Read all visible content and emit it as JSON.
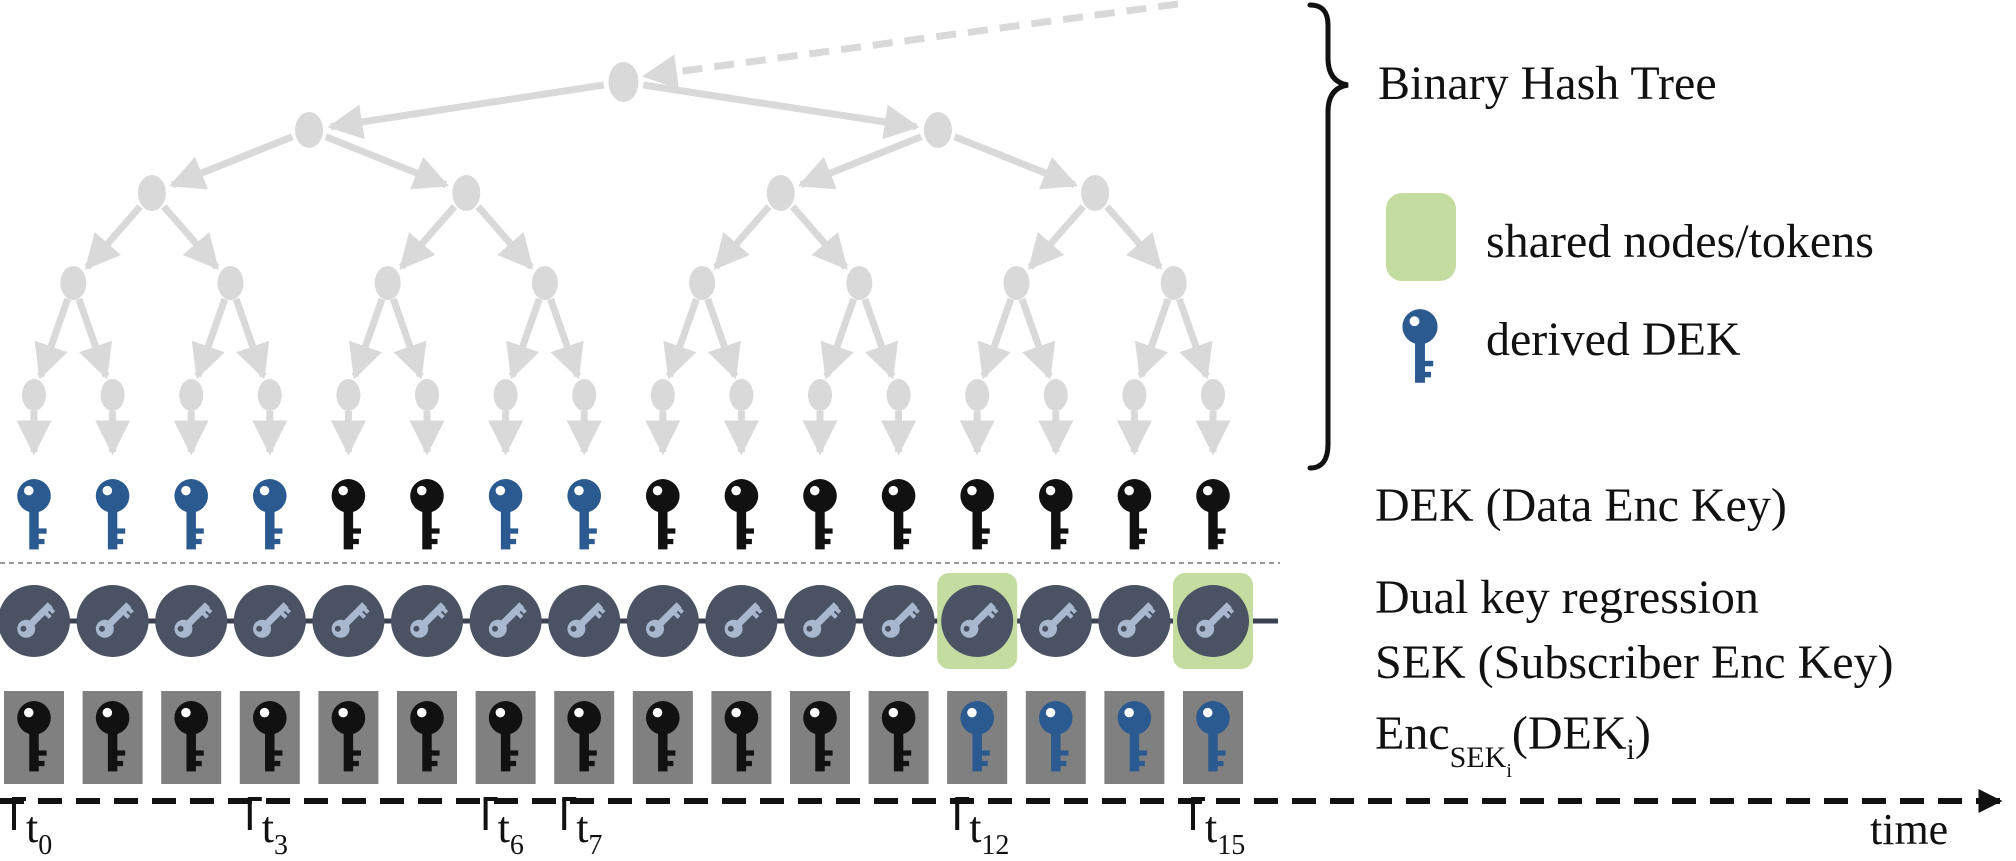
{
  "legend": {
    "brace_label": "Binary Hash Tree",
    "shared_label": "shared nodes/tokens",
    "derived_label": "derived DEK",
    "shared_color": "#c5dca0",
    "derived_color": "#2a5a8f"
  },
  "rows": {
    "dek_label": "DEK (Data Enc Key)",
    "dual_label_1": "Dual key regression",
    "dual_label_2": "SEK (Subscriber Enc Key)",
    "enc_prefix": "Enc",
    "enc_sub": "SEK",
    "enc_subsub": "i",
    "enc_suffix_open": "(DEK",
    "enc_suffix_sub": "i",
    "enc_suffix_close": ")"
  },
  "leaves": {
    "count": 16,
    "dek_colors": [
      "blue",
      "blue",
      "blue",
      "blue",
      "black",
      "black",
      "blue",
      "blue",
      "black",
      "black",
      "black",
      "black",
      "black",
      "black",
      "black",
      "black"
    ],
    "enc_colors": [
      "black",
      "black",
      "black",
      "black",
      "black",
      "black",
      "black",
      "black",
      "black",
      "black",
      "black",
      "black",
      "blue",
      "blue",
      "blue",
      "blue"
    ],
    "shared_sek": [
      12,
      15
    ]
  },
  "timeline": {
    "axis_label": "time",
    "ticks": [
      {
        "leaf": 0,
        "base": "t",
        "sub": "0"
      },
      {
        "leaf": 3,
        "base": "t",
        "sub": "3"
      },
      {
        "leaf": 6,
        "base": "t",
        "sub": "6"
      },
      {
        "leaf": 7,
        "base": "t",
        "sub": "7"
      },
      {
        "leaf": 12,
        "base": "t",
        "sub": "12"
      },
      {
        "leaf": 15,
        "base": "t",
        "sub": "15"
      }
    ]
  },
  "colors": {
    "tree": "#d9d9d9",
    "key_black": "#111111",
    "key_blue": "#2a5a8f",
    "sek_circle": "#4a5264",
    "sek_key": "#a9b8cf",
    "enc_box": "#808080"
  }
}
